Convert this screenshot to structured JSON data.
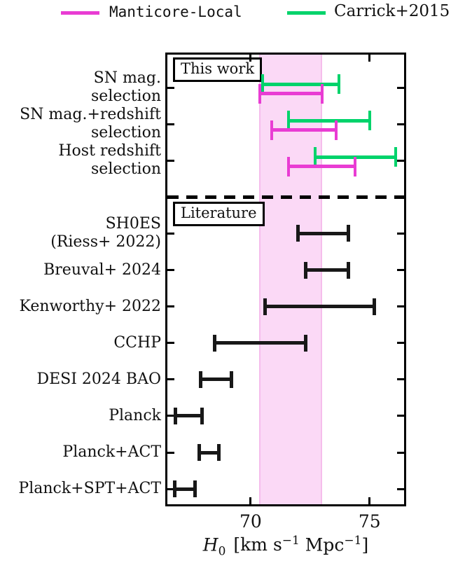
{
  "figure": {
    "legend": [
      {
        "label": "Manticore-Local",
        "color": "#e93cd3"
      },
      {
        "label": "Carrick+2015",
        "color": "#00d36b"
      }
    ],
    "section_labels": {
      "this_work": "This work",
      "literature": "Literature"
    },
    "xlabel": {
      "var": "H",
      "sub": "0",
      "pre": "[km s",
      "sup1": "−1",
      "mid": " Mpc",
      "sup2": "−1",
      "post": "]"
    }
  },
  "chart_data": {
    "type": "errorbar",
    "title": "",
    "xlabel": "H0 [km s^-1 Mpc^-1]",
    "ylabel": "",
    "xlim": [
      66.5,
      76.45
    ],
    "xticks": [
      70,
      75
    ],
    "grid": false,
    "legend_position": "top",
    "band": {
      "xmin": 70.35,
      "xmax": 73.0,
      "color": "#fbd9f6",
      "edge_color": "#f5bdec",
      "note": "shaded band matching Manticore-Local SN mag. selection interval"
    },
    "series_colors": {
      "Manticore-Local": "#e93cd3",
      "Carrick+2015": "#00d36b",
      "Literature": "#181818"
    },
    "sections": [
      {
        "name": "This work",
        "rows": [
          {
            "label": [
              "SN mag.",
              "selection"
            ],
            "bars": [
              {
                "series": "Carrick+2015",
                "lo": 70.5,
                "hi": 73.7
              },
              {
                "series": "Manticore-Local",
                "lo": 70.4,
                "hi": 73.0
              }
            ]
          },
          {
            "label": [
              "SN mag.+redshift",
              "selection"
            ],
            "bars": [
              {
                "series": "Carrick+2015",
                "lo": 71.6,
                "hi": 75.0
              },
              {
                "series": "Manticore-Local",
                "lo": 70.9,
                "hi": 73.6
              }
            ]
          },
          {
            "label": [
              "Host redshift",
              "selection"
            ],
            "bars": [
              {
                "series": "Carrick+2015",
                "lo": 72.7,
                "hi": 76.1
              },
              {
                "series": "Manticore-Local",
                "lo": 71.6,
                "hi": 74.4
              }
            ]
          }
        ]
      },
      {
        "name": "Literature",
        "rows": [
          {
            "label": [
              "SH0ES",
              "(Riess+ 2022)"
            ],
            "bars": [
              {
                "series": "Literature",
                "lo": 72.0,
                "hi": 74.1
              }
            ]
          },
          {
            "label": [
              "Breuval+ 2024"
            ],
            "bars": [
              {
                "series": "Literature",
                "lo": 72.3,
                "hi": 74.1
              }
            ]
          },
          {
            "label": [
              "Kenworthy+ 2022"
            ],
            "bars": [
              {
                "series": "Literature",
                "lo": 70.6,
                "hi": 75.2
              }
            ]
          },
          {
            "label": [
              "CCHP"
            ],
            "bars": [
              {
                "series": "Literature",
                "lo": 68.5,
                "hi": 72.3
              }
            ]
          },
          {
            "label": [
              "DESI 2024 BAO"
            ],
            "bars": [
              {
                "series": "Literature",
                "lo": 67.9,
                "hi": 69.2
              }
            ]
          },
          {
            "label": [
              "Planck"
            ],
            "bars": [
              {
                "series": "Literature",
                "lo": 66.85,
                "hi": 67.95
              }
            ]
          },
          {
            "label": [
              "Planck+ACT"
            ],
            "bars": [
              {
                "series": "Literature",
                "lo": 67.85,
                "hi": 68.65
              }
            ]
          },
          {
            "label": [
              "Planck+SPT+ACT"
            ],
            "bars": [
              {
                "series": "Literature",
                "lo": 66.8,
                "hi": 67.65
              }
            ]
          }
        ]
      }
    ]
  }
}
